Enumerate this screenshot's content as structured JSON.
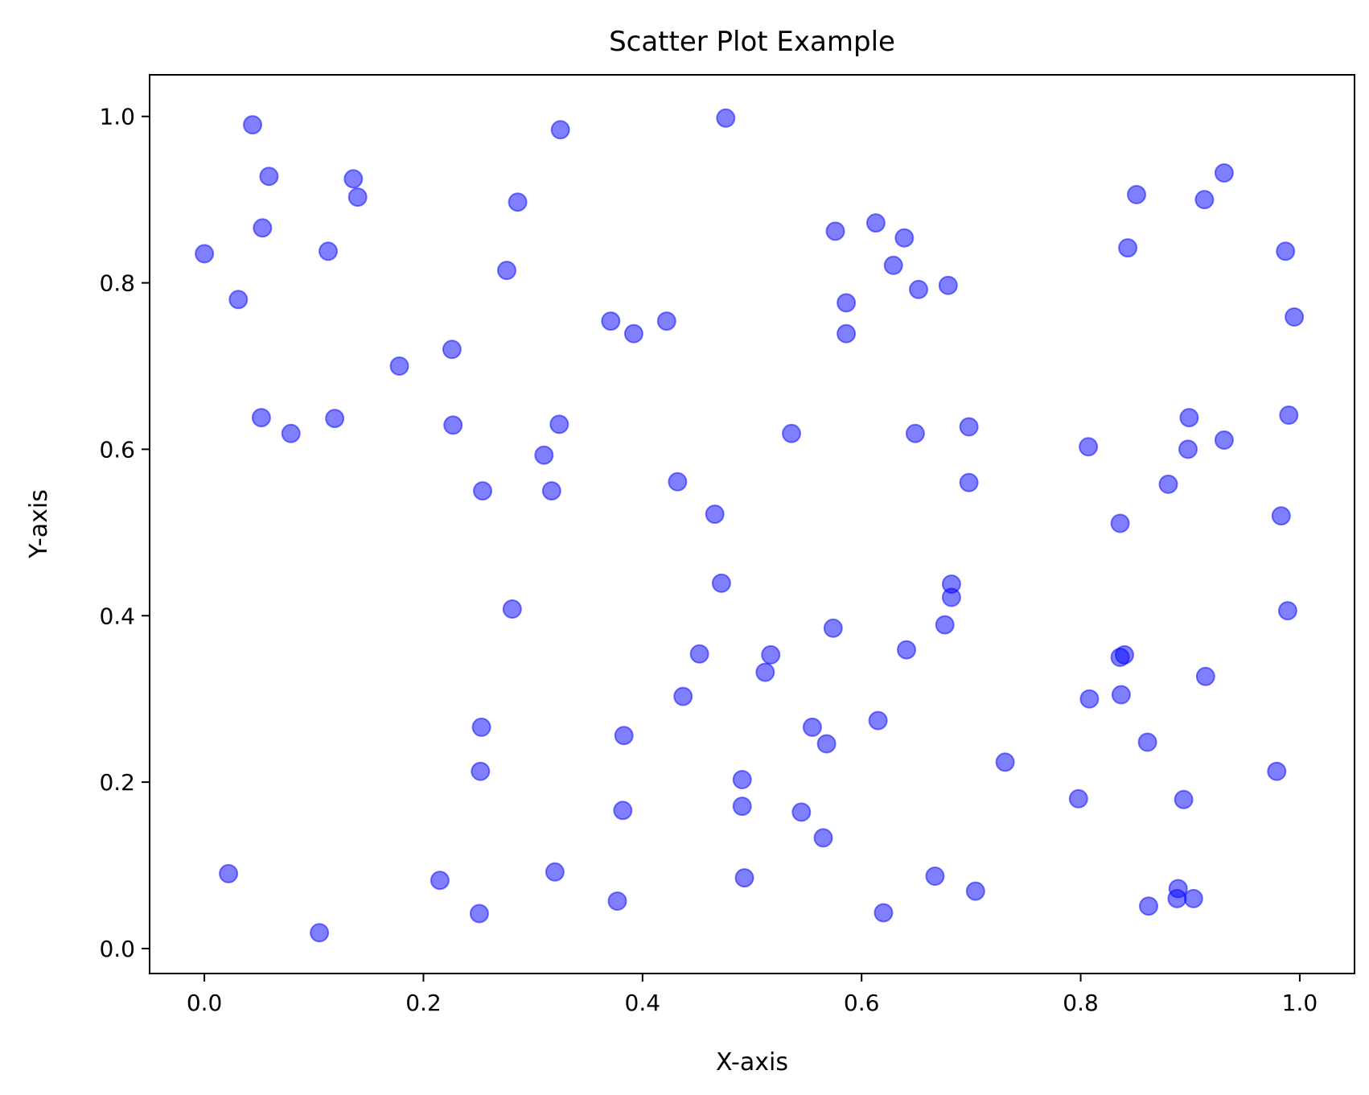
{
  "chart_data": {
    "type": "scatter",
    "title": "Scatter Plot Example",
    "xlabel": "X-axis",
    "ylabel": "Y-axis",
    "xlim": [
      -0.05,
      1.05
    ],
    "ylim": [
      -0.03,
      1.05
    ],
    "grid": false,
    "marker_color": "#0000ff",
    "marker_alpha": 0.5,
    "xticks": [
      {
        "value": 0.0,
        "label": "0.0"
      },
      {
        "value": 0.2,
        "label": "0.2"
      },
      {
        "value": 0.4,
        "label": "0.4"
      },
      {
        "value": 0.6,
        "label": "0.6"
      },
      {
        "value": 0.8,
        "label": "0.8"
      },
      {
        "value": 1.0,
        "label": "1.0"
      }
    ],
    "yticks": [
      {
        "value": 0.0,
        "label": "0.0"
      },
      {
        "value": 0.2,
        "label": "0.2"
      },
      {
        "value": 0.4,
        "label": "0.4"
      },
      {
        "value": 0.6,
        "label": "0.6"
      },
      {
        "value": 0.8,
        "label": "0.8"
      },
      {
        "value": 1.0,
        "label": "1.0"
      }
    ],
    "points": [
      [
        0.0,
        0.835
      ],
      [
        0.044,
        0.99
      ],
      [
        0.059,
        0.928
      ],
      [
        0.053,
        0.866
      ],
      [
        0.031,
        0.78
      ],
      [
        0.136,
        0.925
      ],
      [
        0.14,
        0.903
      ],
      [
        0.113,
        0.838
      ],
      [
        0.052,
        0.638
      ],
      [
        0.079,
        0.619
      ],
      [
        0.119,
        0.637
      ],
      [
        0.178,
        0.7
      ],
      [
        0.226,
        0.72
      ],
      [
        0.227,
        0.629
      ],
      [
        0.254,
        0.55
      ],
      [
        0.286,
        0.897
      ],
      [
        0.276,
        0.815
      ],
      [
        0.325,
        0.984
      ],
      [
        0.324,
        0.63
      ],
      [
        0.31,
        0.593
      ],
      [
        0.317,
        0.55
      ],
      [
        0.281,
        0.408
      ],
      [
        0.022,
        0.09
      ],
      [
        0.105,
        0.019
      ],
      [
        0.215,
        0.082
      ],
      [
        0.251,
        0.042
      ],
      [
        0.252,
        0.213
      ],
      [
        0.253,
        0.266
      ],
      [
        0.32,
        0.092
      ],
      [
        0.377,
        0.057
      ],
      [
        0.382,
        0.166
      ],
      [
        0.383,
        0.256
      ],
      [
        0.371,
        0.754
      ],
      [
        0.392,
        0.739
      ],
      [
        0.422,
        0.754
      ],
      [
        0.476,
        0.998
      ],
      [
        0.432,
        0.561
      ],
      [
        0.466,
        0.522
      ],
      [
        0.472,
        0.439
      ],
      [
        0.452,
        0.354
      ],
      [
        0.437,
        0.303
      ],
      [
        0.491,
        0.203
      ],
      [
        0.491,
        0.171
      ],
      [
        0.493,
        0.085
      ],
      [
        0.536,
        0.619
      ],
      [
        0.517,
        0.353
      ],
      [
        0.512,
        0.332
      ],
      [
        0.576,
        0.862
      ],
      [
        0.586,
        0.776
      ],
      [
        0.586,
        0.739
      ],
      [
        0.613,
        0.872
      ],
      [
        0.639,
        0.854
      ],
      [
        0.629,
        0.821
      ],
      [
        0.652,
        0.792
      ],
      [
        0.679,
        0.797
      ],
      [
        0.649,
        0.619
      ],
      [
        0.698,
        0.627
      ],
      [
        0.698,
        0.56
      ],
      [
        0.574,
        0.385
      ],
      [
        0.555,
        0.266
      ],
      [
        0.568,
        0.246
      ],
      [
        0.545,
        0.164
      ],
      [
        0.565,
        0.133
      ],
      [
        0.615,
        0.274
      ],
      [
        0.641,
        0.359
      ],
      [
        0.676,
        0.389
      ],
      [
        0.682,
        0.438
      ],
      [
        0.682,
        0.422
      ],
      [
        0.62,
        0.043
      ],
      [
        0.667,
        0.087
      ],
      [
        0.704,
        0.069
      ],
      [
        0.731,
        0.224
      ],
      [
        0.807,
        0.603
      ],
      [
        0.836,
        0.511
      ],
      [
        0.808,
        0.3
      ],
      [
        0.798,
        0.18
      ],
      [
        0.851,
        0.906
      ],
      [
        0.843,
        0.842
      ],
      [
        0.913,
        0.9
      ],
      [
        0.931,
        0.932
      ],
      [
        0.987,
        0.838
      ],
      [
        0.995,
        0.759
      ],
      [
        0.899,
        0.638
      ],
      [
        0.898,
        0.6
      ],
      [
        0.931,
        0.611
      ],
      [
        0.88,
        0.558
      ],
      [
        0.99,
        0.641
      ],
      [
        0.983,
        0.52
      ],
      [
        0.836,
        0.35
      ],
      [
        0.84,
        0.353
      ],
      [
        0.837,
        0.305
      ],
      [
        0.861,
        0.248
      ],
      [
        0.914,
        0.327
      ],
      [
        0.894,
        0.179
      ],
      [
        0.889,
        0.072
      ],
      [
        0.888,
        0.06
      ],
      [
        0.903,
        0.06
      ],
      [
        0.862,
        0.051
      ],
      [
        0.989,
        0.406
      ],
      [
        0.979,
        0.213
      ]
    ]
  }
}
